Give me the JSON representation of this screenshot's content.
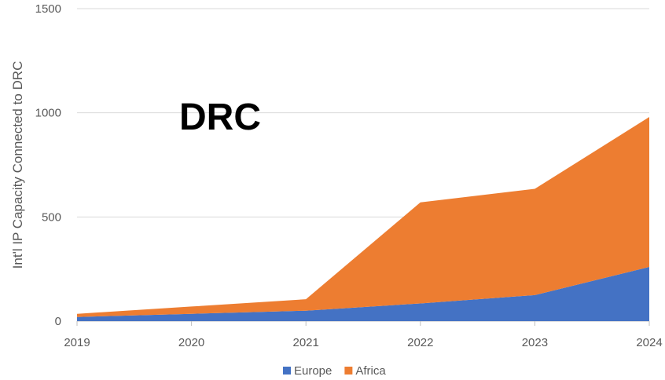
{
  "chart_data": {
    "type": "area",
    "stacked": true,
    "title": "DRC",
    "xlabel": "",
    "ylabel": "Int'l IP Capacity Connected to DRC",
    "categories": [
      "2019",
      "2020",
      "2021",
      "2022",
      "2023",
      "2024"
    ],
    "ylim": [
      0,
      1500
    ],
    "yticks": [
      "0",
      "500",
      "1000",
      "1500"
    ],
    "grid": true,
    "legend_position": "bottom-center",
    "series": [
      {
        "name": "Europe",
        "color": "#4472c4",
        "values": [
          20,
          35,
          50,
          85,
          125,
          260
        ]
      },
      {
        "name": "Africa",
        "color": "#ed7d31",
        "values": [
          15,
          35,
          55,
          485,
          510,
          720
        ]
      }
    ]
  }
}
